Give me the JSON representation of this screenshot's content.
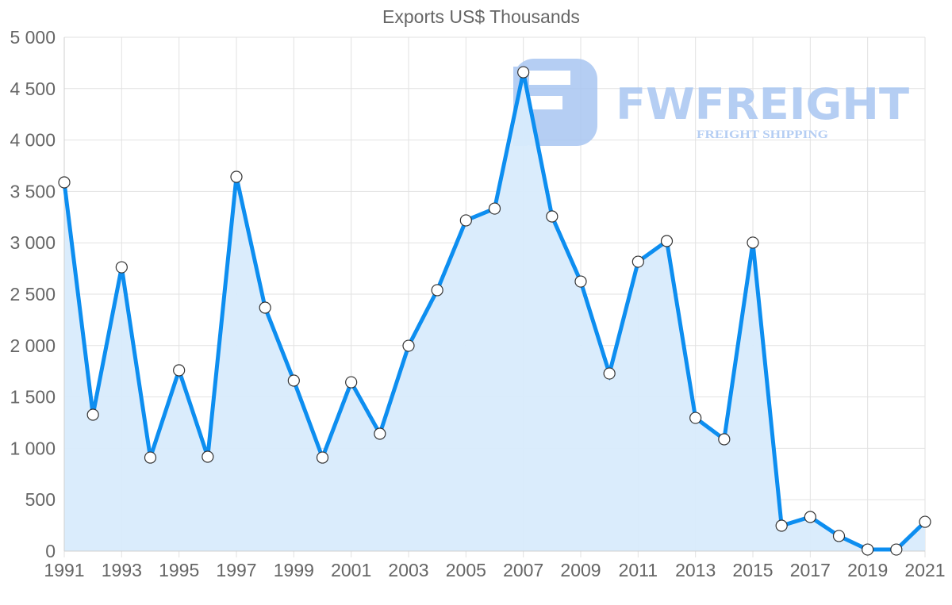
{
  "chart_data": {
    "type": "area",
    "title": "Exports US$ Thousands",
    "xlabel": "",
    "ylabel": "",
    "x": [
      1991,
      1992,
      1993,
      1994,
      1995,
      1996,
      1997,
      1998,
      1999,
      2000,
      2001,
      2002,
      2003,
      2004,
      2005,
      2006,
      2007,
      2008,
      2009,
      2010,
      2011,
      2012,
      2013,
      2014,
      2015,
      2016,
      2017,
      2018,
      2019,
      2020,
      2021
    ],
    "series": [
      {
        "name": "Exports US$ Thousands",
        "values": [
          3588,
          1327,
          2762,
          910,
          1759,
          918,
          3642,
          2369,
          1659,
          910,
          1643,
          1142,
          1998,
          2539,
          3218,
          3333,
          4660,
          3256,
          2623,
          1728,
          2816,
          3017,
          1296,
          1088,
          3002,
          247,
          332,
          147,
          15,
          15,
          285
        ]
      }
    ],
    "ylim": [
      0,
      5000
    ],
    "y_ticks": [
      "0",
      "500",
      "1 000",
      "1 500",
      "2 000",
      "2 500",
      "3 000",
      "3 500",
      "4 000",
      "4 500",
      "5 000"
    ],
    "x_tick_labels": [
      "1991",
      "1993",
      "1995",
      "1997",
      "1999",
      "2001",
      "2003",
      "2005",
      "2007",
      "2009",
      "2011",
      "2013",
      "2015",
      "2017",
      "2019",
      "2021"
    ],
    "grid": true,
    "legend": "none",
    "colors": {
      "line": "#0d8ef0",
      "fill": "#d8ebfc",
      "point_fill": "#ffffff",
      "point_stroke": "#333333"
    }
  },
  "watermark": {
    "brand": "FWFREIGHT",
    "tagline": "FREIGHT SHIPPING",
    "color": "#a9c6f2"
  }
}
